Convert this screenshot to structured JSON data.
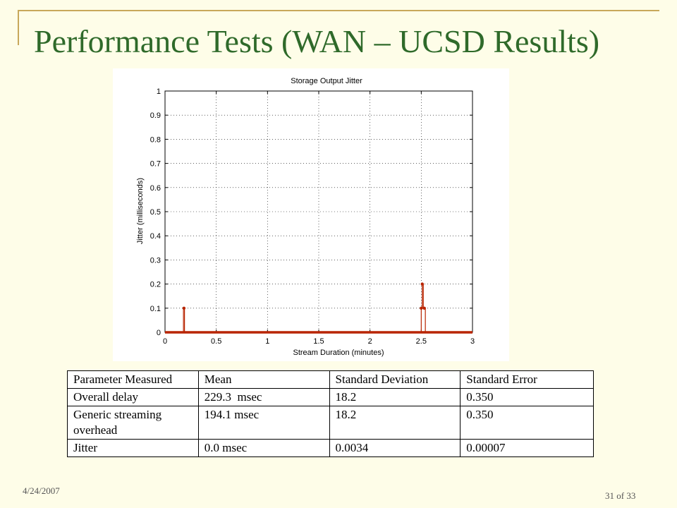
{
  "slide": {
    "title": "Performance Tests (WAN – UCSD Results)",
    "date": "4/24/2007",
    "page": "31 of 33"
  },
  "chart_data": {
    "type": "line",
    "title": "Storage Output Jitter",
    "xlabel": "Stream Duration (minutes)",
    "ylabel": "Jitter (milliseconds)",
    "xlim": [
      0,
      3
    ],
    "ylim": [
      0,
      1
    ],
    "xticks": [
      0,
      0.5,
      1,
      1.5,
      2,
      2.5,
      3
    ],
    "xtick_labels": [
      "0",
      "0.5",
      "1",
      "1.5",
      "2",
      "2.5",
      "3"
    ],
    "yticks": [
      0,
      0.1,
      0.2,
      0.3,
      0.4,
      0.5,
      0.6,
      0.7,
      0.8,
      0.9,
      1
    ],
    "ytick_labels": [
      "0",
      "0.1",
      "0.2",
      "0.3",
      "0.4",
      "0.5",
      "0.6",
      "0.7",
      "0.8",
      "0.9",
      "1"
    ],
    "grid": true,
    "color": "#b82400",
    "series": [
      {
        "x": [
          0,
          0.18,
          0.18,
          0.19,
          0.19,
          2.5,
          2.5,
          2.51,
          2.51,
          2.52,
          2.52,
          2.54,
          2.54,
          3
        ],
        "y": [
          0,
          0,
          0.1,
          0.1,
          0,
          0,
          0.1,
          0.1,
          0.2,
          0.2,
          0.1,
          0.1,
          0,
          0
        ],
        "marker_x": [
          0.185,
          2.5,
          2.51,
          2.53
        ],
        "marker_y": [
          0.1,
          0.1,
          0.2,
          0.1
        ]
      }
    ]
  },
  "table": {
    "headers": [
      "Parameter Measured",
      "Mean",
      "Standard Deviation",
      "Standard Error"
    ],
    "rows": [
      [
        "Overall delay",
        "229.3  msec",
        "18.2",
        "0.350"
      ],
      [
        "Generic streaming overhead",
        "194.1 msec",
        "18.2",
        "0.350"
      ],
      [
        "Jitter",
        "0.0 msec",
        "0.0034",
        "0.00007"
      ]
    ]
  }
}
